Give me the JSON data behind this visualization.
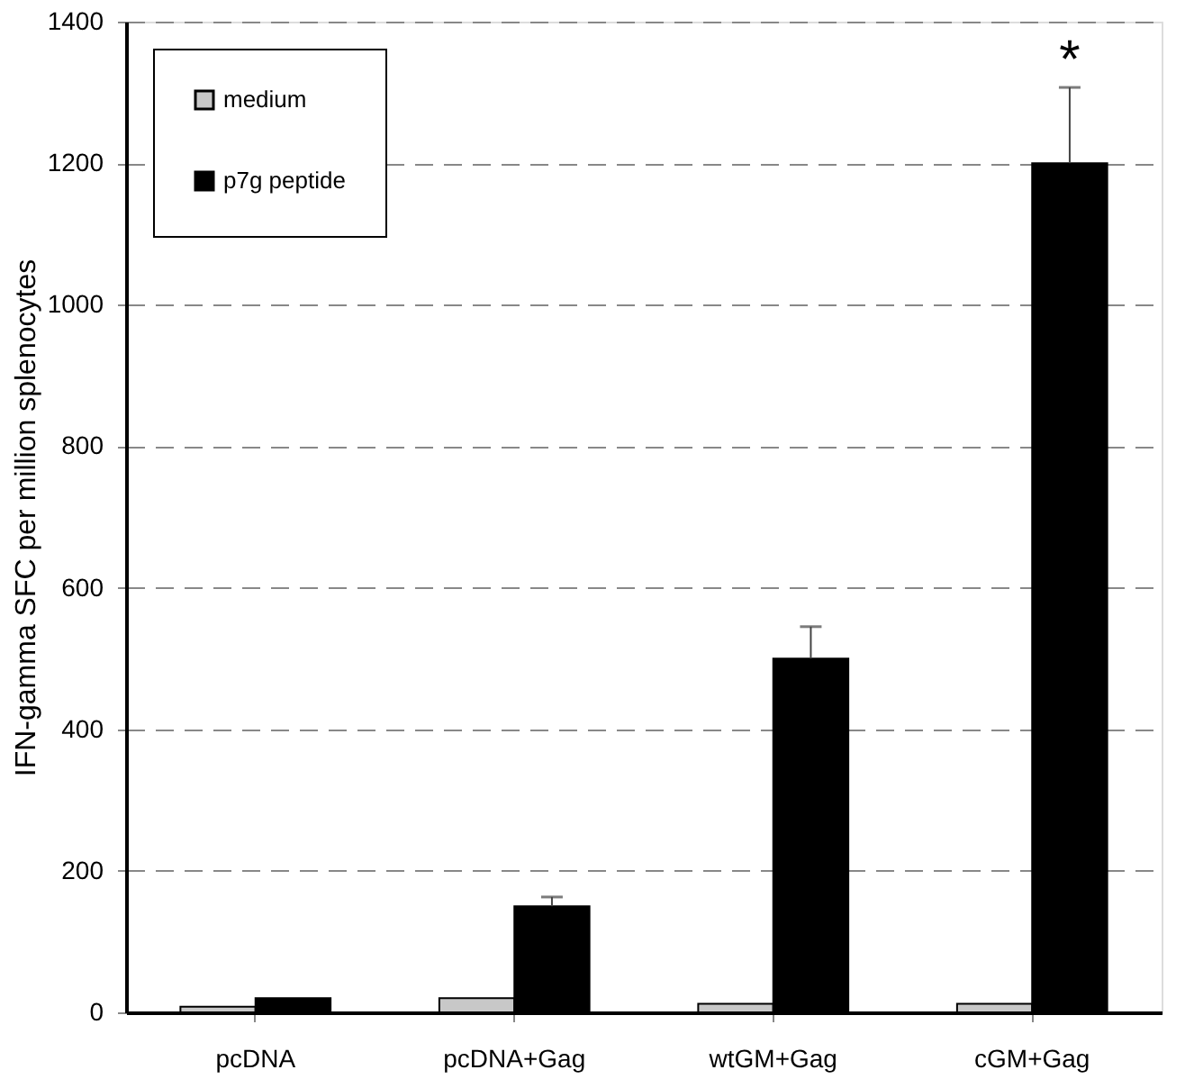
{
  "chart_data": {
    "type": "bar",
    "ylabel": "IFN-gamma SFC per million splenocytes",
    "categories": [
      "pcDNA",
      "pcDNA+Gag",
      "wtGM+Gag",
      "cGM+Gag"
    ],
    "series": [
      {
        "name": "medium",
        "color": "#c8c8c8",
        "values": [
          8,
          20,
          12,
          12
        ]
      },
      {
        "name": "p7g peptide",
        "color": "#000000",
        "values": [
          20,
          150,
          500,
          1200
        ],
        "errors": [
          null,
          13,
          45,
          107
        ]
      }
    ],
    "ylim": [
      0,
      1400
    ],
    "yticks": [
      0,
      200,
      400,
      600,
      800,
      1000,
      1200,
      1400
    ],
    "grid": "y",
    "legend": "top left",
    "annotations": [
      "*"
    ]
  }
}
